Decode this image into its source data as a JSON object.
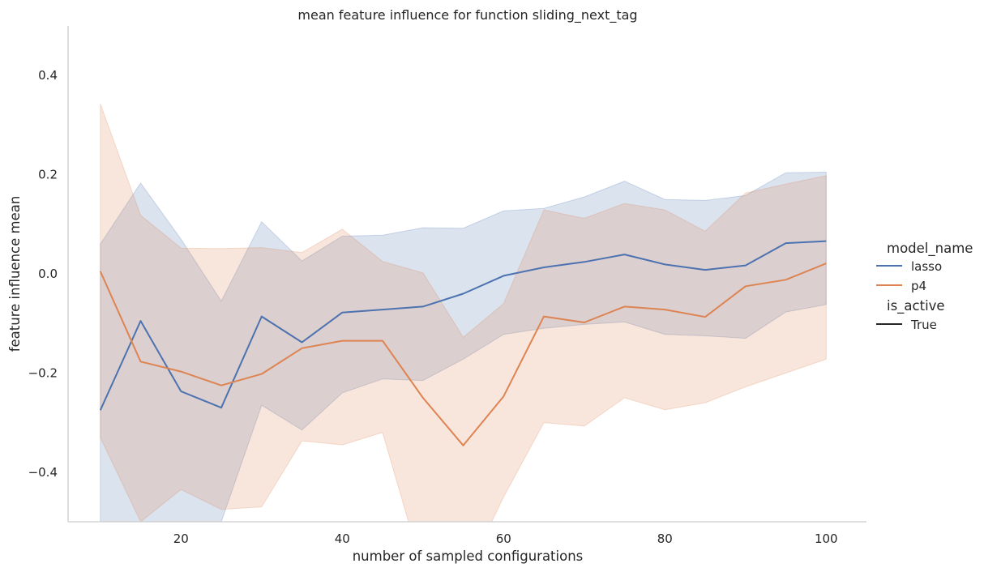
{
  "chart_data": {
    "type": "line",
    "title": "mean feature influence for function sliding_next_tag",
    "xlabel": "number of sampled configurations",
    "ylabel": "feature influence mean",
    "xlim": [
      6,
      105
    ],
    "ylim": [
      -0.5,
      0.5
    ],
    "xticks": [
      20,
      40,
      60,
      80,
      100
    ],
    "yticks": [
      -0.4,
      -0.2,
      0.0,
      0.2,
      0.4
    ],
    "ytick_labels": [
      "−0.4",
      "−0.2",
      "0.0",
      "0.2",
      "0.4"
    ],
    "grid": false,
    "x": [
      10,
      15,
      20,
      25,
      30,
      35,
      40,
      45,
      50,
      55,
      60,
      65,
      70,
      75,
      80,
      85,
      90,
      95,
      100
    ],
    "series": [
      {
        "name": "lasso",
        "color": "#4c72b0",
        "values": [
          -0.275,
          -0.095,
          -0.237,
          -0.27,
          -0.086,
          -0.138,
          -0.078,
          -0.072,
          -0.066,
          -0.04,
          -0.004,
          0.013,
          0.024,
          0.039,
          0.019,
          0.008,
          0.017,
          0.062,
          0.066
        ],
        "ci_upper": [
          0.06,
          0.183,
          0.07,
          -0.055,
          0.105,
          0.026,
          0.076,
          0.078,
          0.093,
          0.092,
          0.127,
          0.132,
          0.155,
          0.187,
          0.15,
          0.148,
          0.158,
          0.204,
          0.205
        ],
        "ci_lower": [
          -0.62,
          -0.6,
          -0.55,
          -0.5,
          -0.265,
          -0.315,
          -0.24,
          -0.212,
          -0.215,
          -0.172,
          -0.122,
          -0.11,
          -0.102,
          -0.097,
          -0.122,
          -0.125,
          -0.13,
          -0.077,
          -0.062
        ]
      },
      {
        "name": "p4",
        "color": "#dd8452",
        "values": [
          0.005,
          -0.177,
          -0.197,
          -0.225,
          -0.202,
          -0.15,
          -0.135,
          -0.135,
          -0.25,
          -0.346,
          -0.247,
          -0.086,
          -0.098,
          -0.066,
          -0.072,
          -0.087,
          -0.025,
          -0.012,
          0.021
        ],
        "ci_upper": [
          0.343,
          0.118,
          0.052,
          0.051,
          0.053,
          0.043,
          0.09,
          0.025,
          0.002,
          -0.128,
          -0.06,
          0.129,
          0.112,
          0.142,
          0.129,
          0.086,
          0.163,
          0.181,
          0.198
        ],
        "ci_lower": [
          -0.33,
          -0.5,
          -0.435,
          -0.475,
          -0.47,
          -0.337,
          -0.345,
          -0.32,
          -0.6,
          -0.62,
          -0.45,
          -0.3,
          -0.307,
          -0.25,
          -0.274,
          -0.26,
          -0.228,
          -0.2,
          -0.172
        ]
      }
    ],
    "legend": {
      "placement": "right",
      "hue_title": "model_name",
      "style_title": "is_active",
      "style_entries": [
        {
          "label": "True",
          "color": "#262626"
        }
      ]
    }
  }
}
